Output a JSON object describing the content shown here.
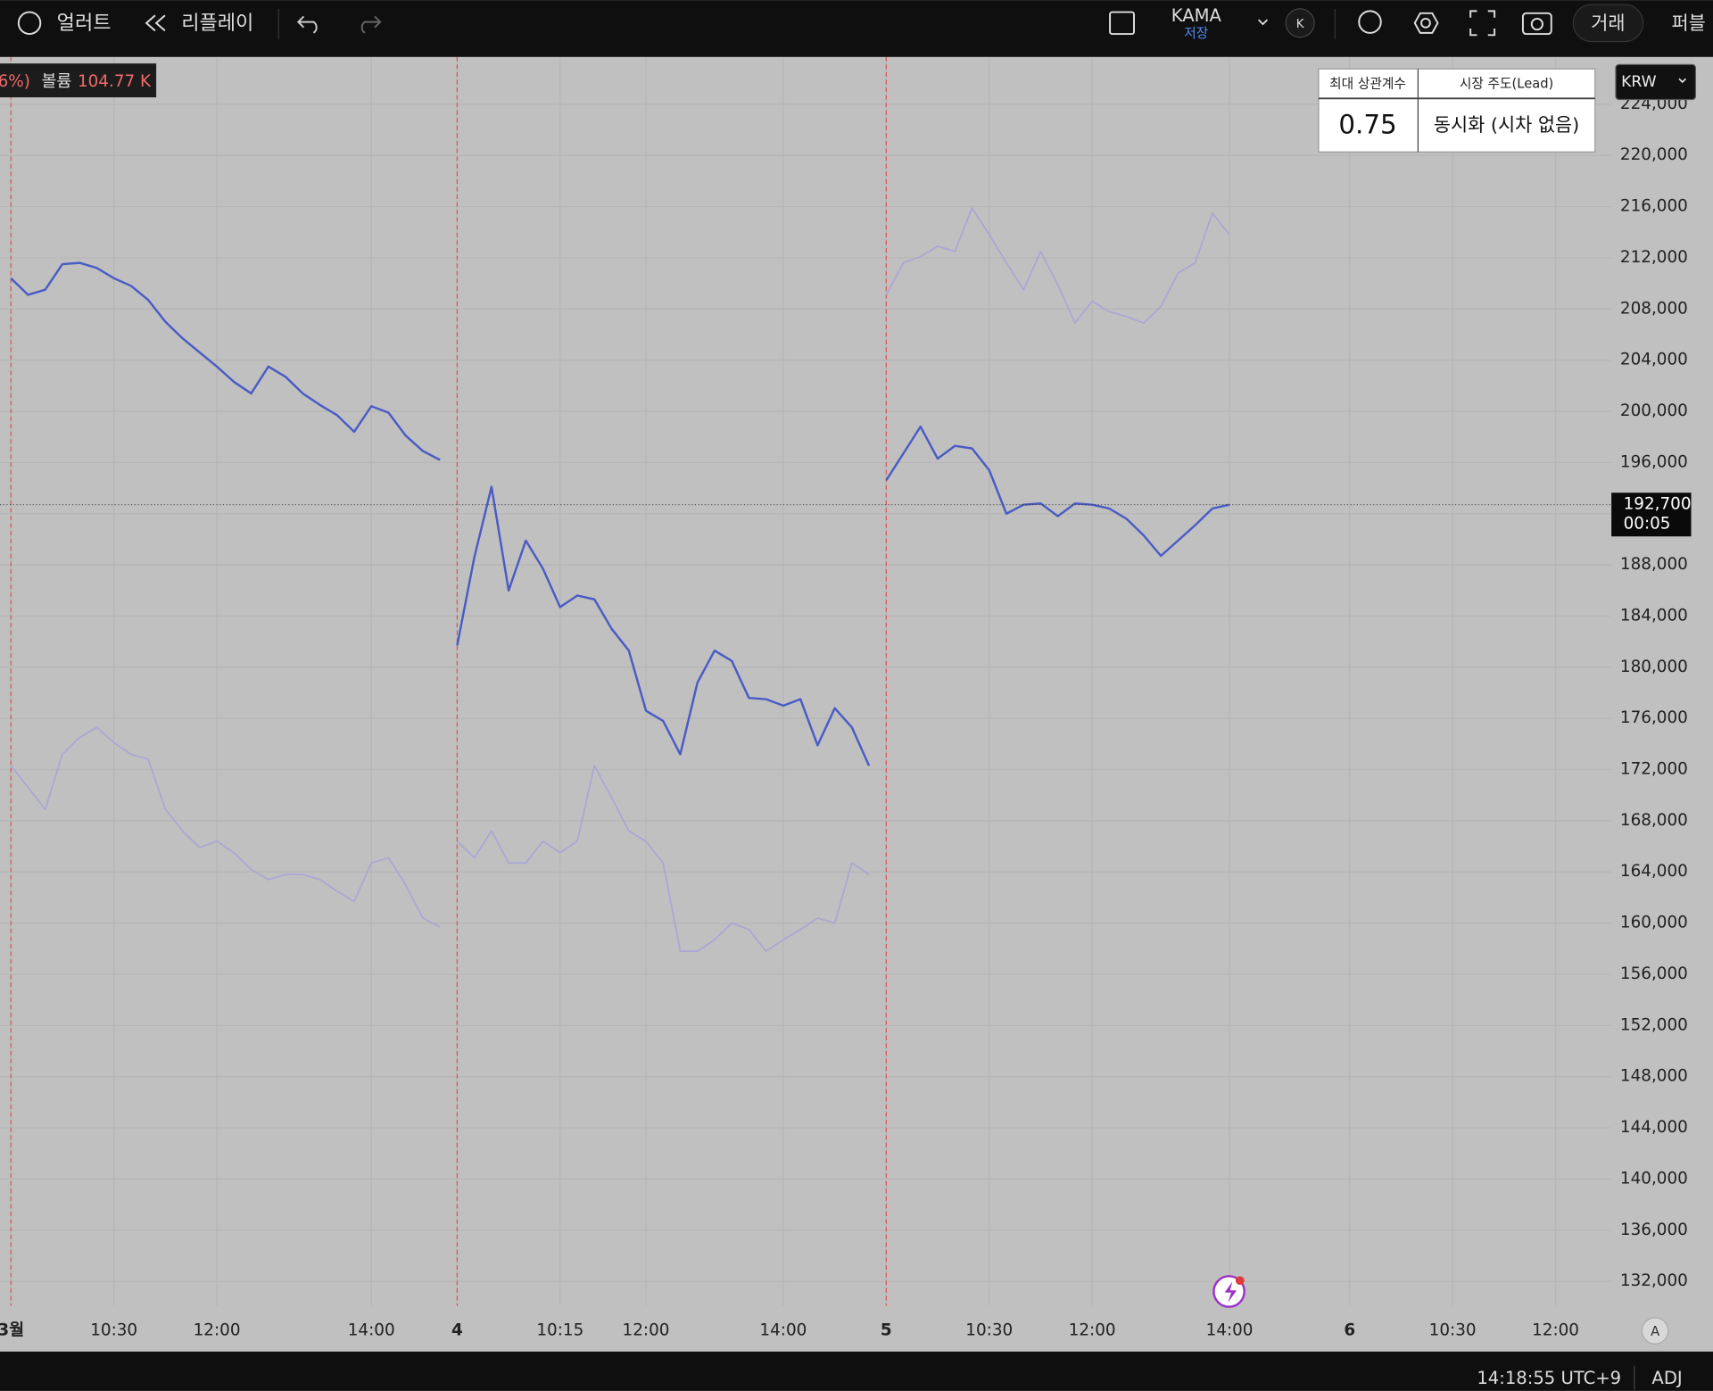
{
  "toolbar": {
    "alert": "얼러트",
    "replay": "리플레이",
    "indicator": "KAMA",
    "save": "저장",
    "badge": "K",
    "trade": "거래",
    "publish": "퍼블"
  },
  "legend": {
    "change": "6%)",
    "volume_label": "볼륨",
    "volume": "104.77 K"
  },
  "currency": "KRW",
  "correlation": {
    "headers": [
      "최대 상관계수",
      "시장 주도(Lead)"
    ],
    "value": 0.75,
    "lead": "동시화 (시차 없음)"
  },
  "status": {
    "clock": "14:18:55 UTC+9",
    "adj": "ADJ",
    "auto": "A"
  },
  "chart_data": {
    "type": "line",
    "categories": [
      "3월",
      null,
      null,
      null,
      null,
      null,
      "10:30",
      null,
      null,
      null,
      null,
      null,
      "12:00",
      null,
      null,
      null,
      null,
      null,
      null,
      null,
      null,
      "14:00",
      null,
      null,
      null,
      null,
      "4",
      null,
      null,
      null,
      null,
      null,
      "10:15",
      null,
      null,
      null,
      null,
      "12:00",
      null,
      null,
      null,
      null,
      null,
      null,
      null,
      "14:00",
      null,
      null,
      null,
      null,
      null,
      "5",
      null,
      null,
      null,
      null,
      null,
      "10:30",
      null,
      null,
      null,
      null,
      null,
      "12:00",
      null,
      null,
      null,
      null,
      null,
      null,
      null,
      "14:00",
      null,
      null,
      null,
      null,
      null,
      null,
      "6",
      null,
      null,
      null,
      null,
      null,
      "10:30",
      null,
      null,
      null,
      null,
      null,
      "12:00",
      null
    ],
    "series": [
      {
        "color": "#4a5cc4",
        "values": [
          210400,
          209100,
          209500,
          211500,
          211600,
          211200,
          210400,
          209800,
          208700,
          207000,
          205700,
          204600,
          203500,
          202300,
          201400,
          203500,
          202700,
          201400,
          200500,
          199700,
          198400,
          200400,
          199900,
          198100,
          196900,
          196200,
          181700,
          188600,
          194100,
          186000,
          189900,
          187700,
          184700,
          185600,
          185300,
          183000,
          181300,
          176600,
          175800,
          173200,
          178800,
          181300,
          180500,
          177600,
          177500,
          177000,
          177500,
          173900,
          176800,
          175300,
          172300,
          194600,
          196700,
          198800,
          196300,
          197300,
          197100,
          195400,
          192000,
          192700,
          192800,
          191800,
          192800,
          192700,
          192400,
          191600,
          190300,
          188700,
          189900,
          191100,
          192400,
          192700,
          null,
          null,
          null,
          null,
          null,
          null,
          null,
          null,
          null,
          null,
          null,
          null,
          null,
          null,
          null,
          null,
          null,
          null,
          null,
          null
        ]
      },
      {
        "color": "#a9a6d6",
        "values": [
          172300,
          170600,
          168900,
          173200,
          174500,
          175300,
          174100,
          173200,
          172800,
          168900,
          167200,
          165900,
          166400,
          165500,
          164200,
          163400,
          163800,
          163800,
          163400,
          162500,
          161700,
          164700,
          165100,
          163000,
          160400,
          159700,
          166400,
          165100,
          167200,
          164700,
          164700,
          166400,
          165500,
          166400,
          172300,
          169800,
          167200,
          166400,
          164700,
          157800,
          157800,
          158700,
          160000,
          159500,
          157800,
          158700,
          159500,
          160400,
          160000,
          164700,
          163800,
          209100,
          211600,
          212100,
          212900,
          212500,
          215900,
          213800,
          211600,
          209500,
          212500,
          209900,
          206900,
          208600,
          207800,
          207400,
          206900,
          208200,
          210800,
          211600,
          215500,
          213800,
          null,
          null,
          null,
          null,
          null,
          null,
          null,
          null,
          null,
          null,
          null,
          null,
          null,
          null,
          null,
          null,
          null,
          null,
          null,
          null
        ]
      }
    ],
    "ylim": [
      130100,
      227700
    ],
    "yticks": [
      {
        "value": 132000,
        "label": "132,000"
      },
      {
        "value": 136000,
        "label": "136,000"
      },
      {
        "value": 140000,
        "label": "140,000"
      },
      {
        "value": 144000,
        "label": "144,000"
      },
      {
        "value": 148000,
        "label": "148,000"
      },
      {
        "value": 152000,
        "label": "152,000"
      },
      {
        "value": 156000,
        "label": "156,000"
      },
      {
        "value": 160000,
        "label": "160,000"
      },
      {
        "value": 164000,
        "label": "164,000"
      },
      {
        "value": 168000,
        "label": "168,000"
      },
      {
        "value": 172000,
        "label": "172,000"
      },
      {
        "value": 176000,
        "label": "176,000"
      },
      {
        "value": 180000,
        "label": "180,000"
      },
      {
        "value": 184000,
        "label": "184,000"
      },
      {
        "value": 188000,
        "label": "188,000"
      },
      {
        "value": 192000,
        "label": "192,000"
      },
      {
        "value": 196000,
        "label": "196,000"
      },
      {
        "value": 200000,
        "label": "200,000"
      },
      {
        "value": 204000,
        "label": "204,000"
      },
      {
        "value": 208000,
        "label": "208,000"
      },
      {
        "value": 212000,
        "label": "212,000"
      },
      {
        "value": 216000,
        "label": "216,000"
      },
      {
        "value": 220000,
        "label": "220,000"
      },
      {
        "value": 224000,
        "label": "224,000"
      }
    ],
    "grid": true,
    "last_price": {
      "value": 192700,
      "label": "192,700"
    },
    "countdown": "00:05"
  }
}
